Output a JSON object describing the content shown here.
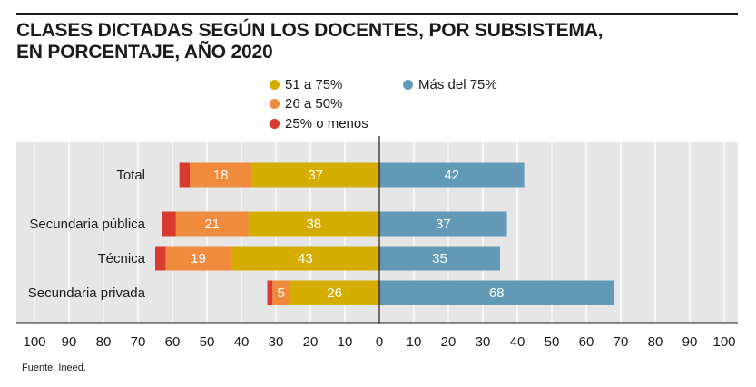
{
  "title_line1": "CLASES DICTADAS SEGÚN LOS DOCENTES, POR SUBSISTEMA,",
  "title_line2": "EN PORCENTAJE, AÑO 2020",
  "legend": [
    {
      "label": "51 a 75%",
      "color": "#d5ad00"
    },
    {
      "label": "26 a 50%",
      "color": "#f08a3c"
    },
    {
      "label": "25% o menos",
      "color": "#d83a2f"
    },
    {
      "label": "Más del 75%",
      "color": "#6199b7"
    }
  ],
  "source": "Fuente: Ineed.",
  "chart_data": {
    "type": "bar",
    "orientation": "horizontal-diverging",
    "categories": [
      "Total",
      "Secundaria pública",
      "Técnica",
      "Secundaria privada"
    ],
    "series": [
      {
        "name": "Más del 75%",
        "side": "right",
        "color": "#6199b7",
        "values": [
          42,
          37,
          35,
          68
        ],
        "labels": [
          "42",
          "37",
          "35",
          "68"
        ]
      },
      {
        "name": "51 a 75%",
        "side": "left",
        "color": "#d5ad00",
        "values": [
          37,
          38,
          43,
          26
        ],
        "labels": [
          "37",
          "38",
          "43",
          "26"
        ]
      },
      {
        "name": "26 a 50%",
        "side": "left",
        "color": "#f08a3c",
        "values": [
          18,
          21,
          19,
          5
        ],
        "labels": [
          "18",
          "21",
          "19",
          "5"
        ]
      },
      {
        "name": "25% o menos",
        "side": "left",
        "color": "#d83a2f",
        "values": [
          3,
          4,
          3,
          1.5
        ],
        "labels": [
          "",
          "",
          "",
          ""
        ]
      }
    ],
    "xlim": [
      -100,
      100
    ],
    "xticks": [
      -100,
      -90,
      -80,
      -70,
      -60,
      -50,
      -40,
      -30,
      -20,
      -10,
      0,
      10,
      20,
      30,
      40,
      50,
      60,
      70,
      80,
      90,
      100
    ],
    "xtick_labels": [
      "100",
      "90",
      "80",
      "70",
      "60",
      "50",
      "40",
      "30",
      "20",
      "10",
      "0",
      "10",
      "20",
      "30",
      "40",
      "50",
      "60",
      "70",
      "80",
      "90",
      "100"
    ],
    "grid": true
  }
}
